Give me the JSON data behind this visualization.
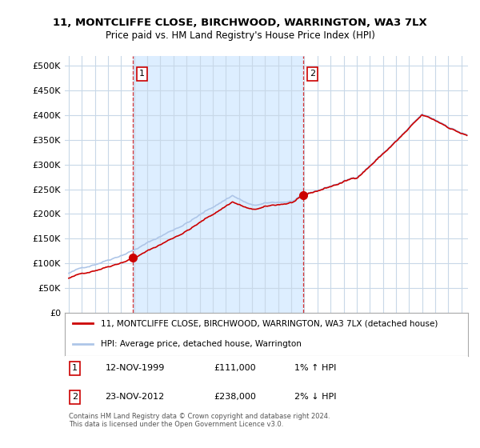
{
  "title_line1": "11, MONTCLIFFE CLOSE, BIRCHWOOD, WARRINGTON, WA3 7LX",
  "title_line2": "Price paid vs. HM Land Registry's House Price Index (HPI)",
  "ylabel_ticks": [
    "£0",
    "£50K",
    "£100K",
    "£150K",
    "£200K",
    "£250K",
    "£300K",
    "£350K",
    "£400K",
    "£450K",
    "£500K"
  ],
  "ytick_values": [
    0,
    50000,
    100000,
    150000,
    200000,
    250000,
    300000,
    350000,
    400000,
    450000,
    500000
  ],
  "ylim": [
    0,
    520000
  ],
  "xlim_start": 1994.7,
  "xlim_end": 2025.5,
  "hpi_color": "#aec6e8",
  "price_color": "#cc0000",
  "shade_color": "#ddeeff",
  "grid_color": "#c8d8e8",
  "background_color": "#ffffff",
  "legend_label_price": "11, MONTCLIFFE CLOSE, BIRCHWOOD, WARRINGTON, WA3 7LX (detached house)",
  "legend_label_hpi": "HPI: Average price, detached house, Warrington",
  "purchase1_x": 1999.88,
  "purchase1_y": 111000,
  "purchase2_x": 2012.9,
  "purchase2_y": 238000,
  "table_data": [
    [
      "1",
      "12-NOV-1999",
      "£111,000",
      "1% ↑ HPI"
    ],
    [
      "2",
      "23-NOV-2012",
      "£238,000",
      "2% ↓ HPI"
    ]
  ],
  "footnote": "Contains HM Land Registry data © Crown copyright and database right 2024.\nThis data is licensed under the Open Government Licence v3.0."
}
